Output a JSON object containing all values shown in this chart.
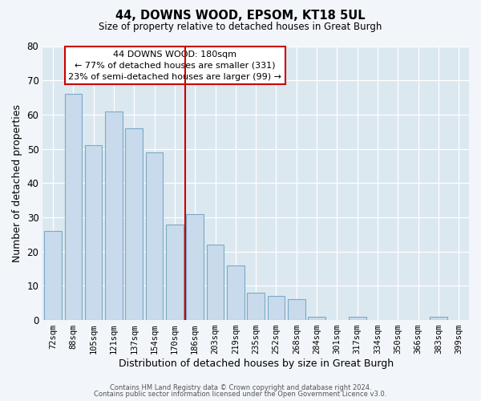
{
  "title": "44, DOWNS WOOD, EPSOM, KT18 5UL",
  "subtitle": "Size of property relative to detached houses in Great Burgh",
  "xlabel": "Distribution of detached houses by size in Great Burgh",
  "ylabel": "Number of detached properties",
  "bar_labels": [
    "72sqm",
    "88sqm",
    "105sqm",
    "121sqm",
    "137sqm",
    "154sqm",
    "170sqm",
    "186sqm",
    "203sqm",
    "219sqm",
    "235sqm",
    "252sqm",
    "268sqm",
    "284sqm",
    "301sqm",
    "317sqm",
    "334sqm",
    "350sqm",
    "366sqm",
    "383sqm",
    "399sqm"
  ],
  "bar_values": [
    26,
    66,
    51,
    61,
    56,
    49,
    28,
    31,
    22,
    16,
    8,
    7,
    6,
    1,
    0,
    1,
    0,
    0,
    0,
    1,
    0
  ],
  "bar_color": "#c8daeb",
  "bar_edge_color": "#7aaac8",
  "vline_color": "#cc0000",
  "ylim": [
    0,
    80
  ],
  "yticks": [
    0,
    10,
    20,
    30,
    40,
    50,
    60,
    70,
    80
  ],
  "annotation_title": "44 DOWNS WOOD: 180sqm",
  "annotation_line1": "← 77% of detached houses are smaller (331)",
  "annotation_line2": "23% of semi-detached houses are larger (99) →",
  "annotation_box_color": "white",
  "annotation_box_edge": "#cc0000",
  "footer1": "Contains HM Land Registry data © Crown copyright and database right 2024.",
  "footer2": "Contains public sector information licensed under the Open Government Licence v3.0.",
  "bg_color": "#f2f5f9",
  "plot_bg_color": "#dce8f0"
}
